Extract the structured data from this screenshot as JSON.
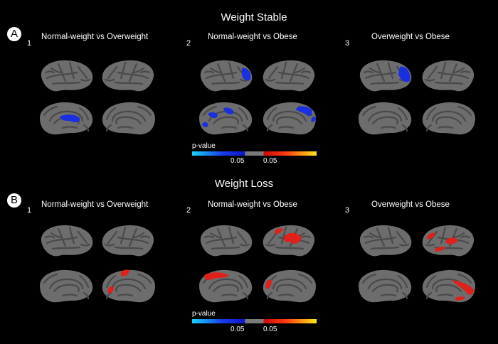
{
  "sections": [
    {
      "letter": "A",
      "title": "Weight Stable",
      "panels": [
        {
          "num": "1",
          "title": "Normal-weight vs Overweight"
        },
        {
          "num": "2",
          "title": "Normal-weight vs Obese"
        },
        {
          "num": "3",
          "title": "Overweight vs Obese"
        }
      ]
    },
    {
      "letter": "B",
      "title": "Weight Loss",
      "panels": [
        {
          "num": "1",
          "title": "Normal-weight vs Overweight"
        },
        {
          "num": "2",
          "title": "Normal-weight vs Obese"
        },
        {
          "num": "3",
          "title": "Overweight vs Obese"
        }
      ]
    }
  ],
  "legend": {
    "label": "p-value",
    "tick_left": "0.05",
    "tick_right": "0.05"
  },
  "colors": {
    "background": "#000000",
    "brain": "#6d6d6d",
    "sulcus": "#4a4a4a",
    "decrease": "#1a2fe0",
    "increase": "#e0201a"
  }
}
